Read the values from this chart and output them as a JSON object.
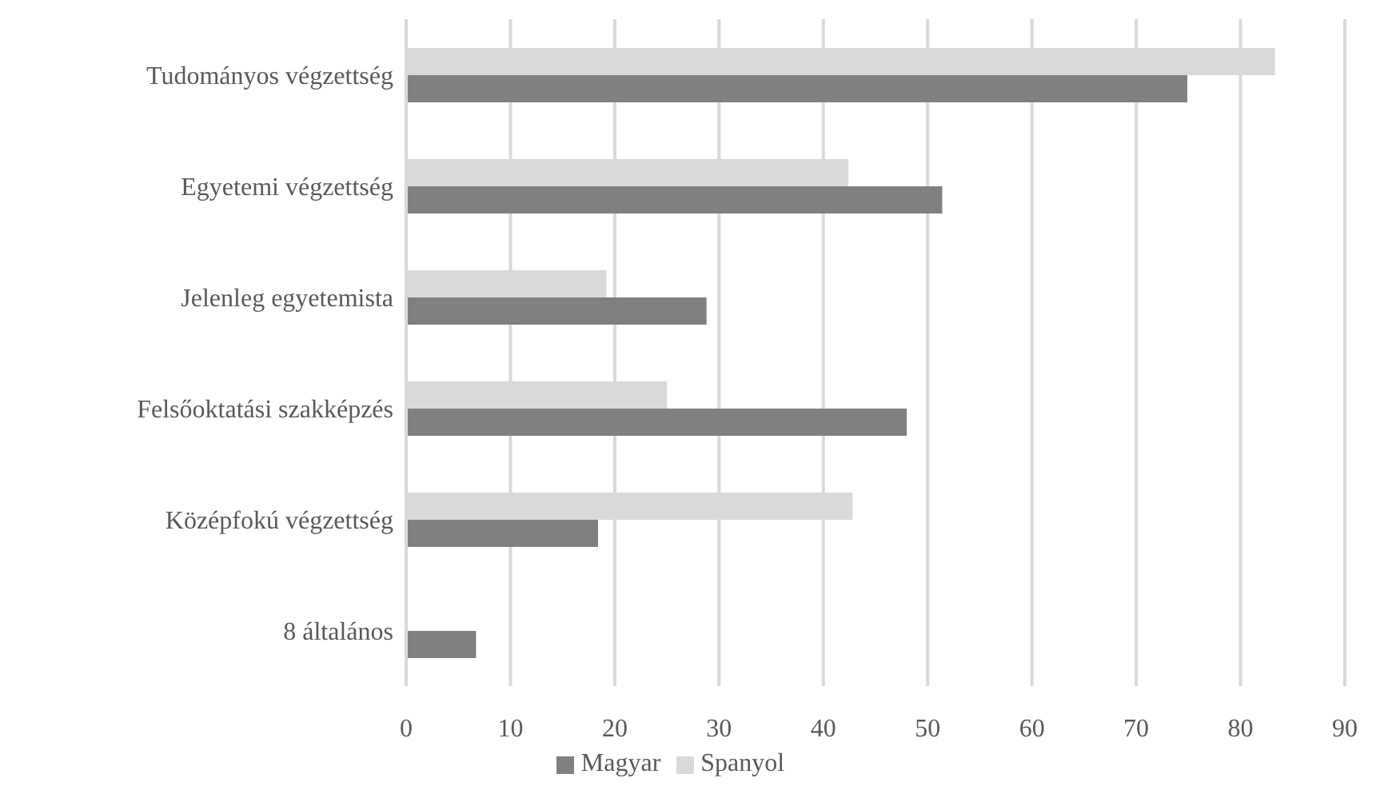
{
  "chart_data": {
    "type": "bar",
    "orientation": "horizontal",
    "categories": [
      "Tudományos végzettség",
      "Egyetemi végzettség",
      "Jelenleg egyetemista",
      "Felsőoktatási szakképzés",
      "Középfokú végzettség",
      "8 általános"
    ],
    "series": [
      {
        "name": "Spanyol",
        "color": "#d9d9d9",
        "values": [
          83.3,
          42.4,
          19.2,
          25.0,
          42.8,
          0
        ]
      },
      {
        "name": "Magyar",
        "color": "#808080",
        "values": [
          74.9,
          51.4,
          28.8,
          48.0,
          18.4,
          6.7
        ]
      }
    ],
    "xlim": [
      0,
      90
    ],
    "xticks": [
      0,
      10,
      20,
      30,
      40,
      50,
      60,
      70,
      80,
      90
    ],
    "grid": "x",
    "legend": "bottom"
  }
}
